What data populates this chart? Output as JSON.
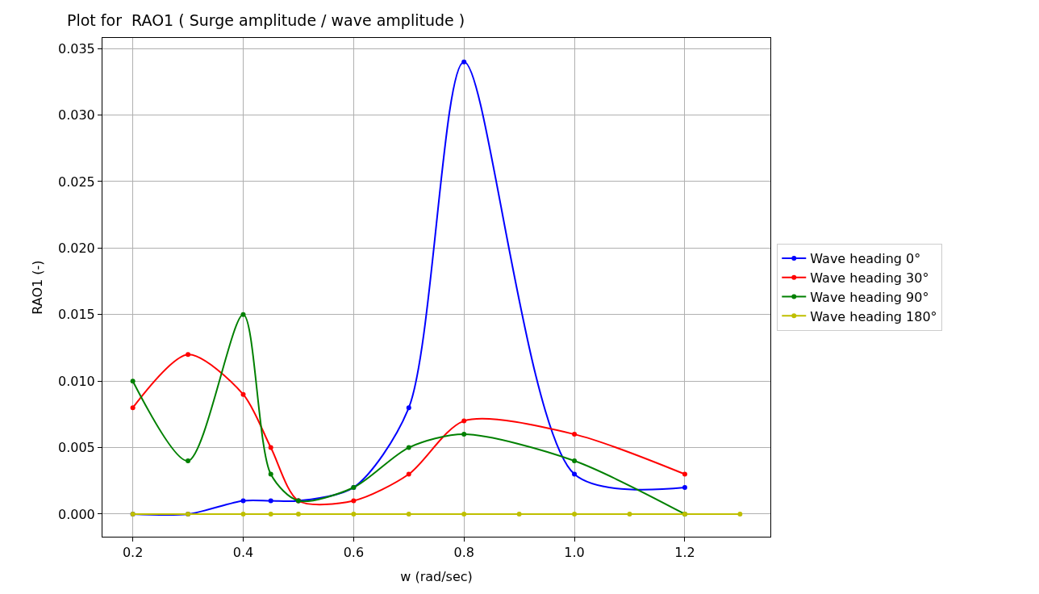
{
  "chart_data": {
    "type": "line",
    "title": "Plot for  RAO1 ( Surge amplitude / wave amplitude )",
    "xlabel": "w (rad/sec)",
    "ylabel": "RAO1 (-)",
    "series": [
      {
        "name": "Wave heading 0°",
        "color": "#0000ff",
        "x": [
          0.2,
          0.3,
          0.4,
          0.45,
          0.5,
          0.6,
          0.7,
          0.8,
          1.0,
          1.2
        ],
        "values": [
          0,
          0,
          0.001,
          0.001,
          0.001,
          0.002,
          0.008,
          0.034,
          0.003,
          0.002
        ]
      },
      {
        "name": "Wave heading 30°",
        "color": "#ff0000",
        "x": [
          0.2,
          0.3,
          0.4,
          0.45,
          0.5,
          0.6,
          0.7,
          0.8,
          1.0,
          1.2
        ],
        "values": [
          0.008,
          0.012,
          0.009,
          0.005,
          0.001,
          0.001,
          0.003,
          0.007,
          0.006,
          0.003
        ]
      },
      {
        "name": "Wave heading 90°",
        "color": "#008000",
        "x": [
          0.2,
          0.3,
          0.4,
          0.45,
          0.5,
          0.6,
          0.7,
          0.8,
          1.0,
          1.2
        ],
        "values": [
          0.01,
          0.004,
          0.015,
          0.003,
          0.001,
          0.002,
          0.005,
          0.006,
          0.004,
          0
        ]
      },
      {
        "name": "Wave heading 180°",
        "color": "#bfbf00",
        "x": [
          0.2,
          0.3,
          0.4,
          0.45,
          0.5,
          0.6,
          0.7,
          0.8,
          0.9,
          1.0,
          1.1,
          1.2,
          1.3
        ],
        "values": [
          0,
          0,
          0,
          0,
          0,
          0,
          0,
          0,
          0,
          0,
          0,
          0,
          0
        ]
      }
    ],
    "xlim": [
      0.145,
      1.355
    ],
    "xticks": [
      {
        "value": 0.2,
        "label": "0.2"
      },
      {
        "value": 0.4,
        "label": "0.4"
      },
      {
        "value": 0.6,
        "label": "0.6"
      },
      {
        "value": 0.8,
        "label": "0.8"
      },
      {
        "value": 1.0,
        "label": "1.0"
      },
      {
        "value": 1.2,
        "label": "1.2"
      }
    ],
    "ylim": [
      -0.0017,
      0.0358
    ],
    "yticks": [
      {
        "value": 0,
        "label": "0.000"
      },
      {
        "value": 0.005,
        "label": "0.005"
      },
      {
        "value": 0.01,
        "label": "0.010"
      },
      {
        "value": 0.015,
        "label": "0.015"
      },
      {
        "value": 0.02,
        "label": "0.020"
      },
      {
        "value": 0.025,
        "label": "0.025"
      },
      {
        "value": 0.03,
        "label": "0.030"
      },
      {
        "value": 0.035,
        "label": "0.035"
      }
    ],
    "grid": true,
    "legend": "right",
    "marker": "circle",
    "line_style": "solid"
  }
}
